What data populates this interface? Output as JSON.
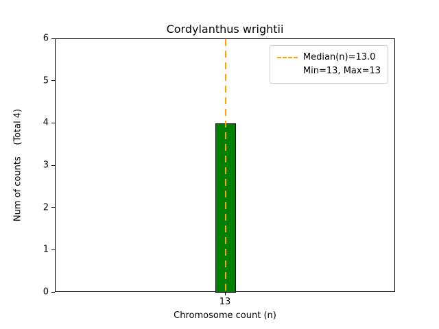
{
  "chart_data": {
    "type": "bar",
    "title": "Cordylanthus wrightii",
    "xlabel": "Chromosome count (n)",
    "ylabel": "Num of counts    (Total 4)",
    "categories": [
      "13"
    ],
    "values": [
      4
    ],
    "ylim": [
      0,
      6
    ],
    "yticks": [
      0,
      1,
      2,
      3,
      4,
      5,
      6
    ],
    "grid": false,
    "bar_color": "#008000",
    "bar_edge_color": "#000000",
    "median_line": {
      "x_category": "13",
      "color": "#FFA500",
      "style": "dashed"
    },
    "legend": {
      "position": "upper right",
      "entries": [
        {
          "label": "Median(n)=13.0",
          "sample": "dashed"
        },
        {
          "label": "Min=13, Max=13",
          "sample": "none"
        }
      ]
    }
  }
}
